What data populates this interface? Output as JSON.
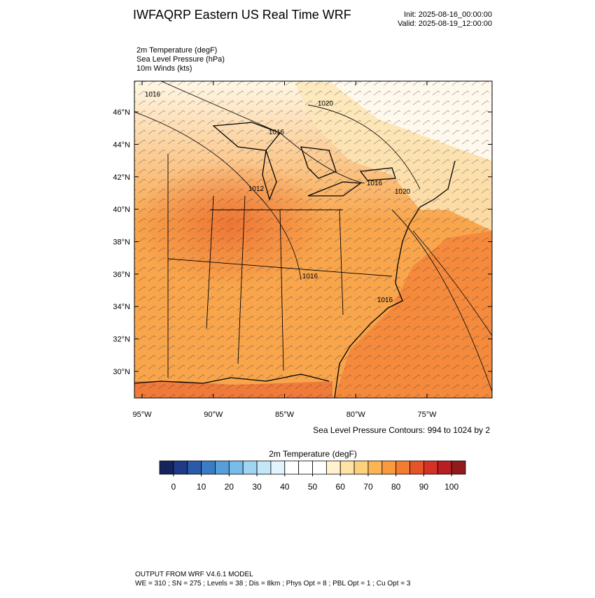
{
  "header": {
    "title": "IWFAQRP Eastern US Real Time WRF",
    "init": "Init: 2025-08-16_00:00:00",
    "valid": "Valid: 2025-08-19_12:00:00",
    "fields": [
      "2m Temperature   (degF)",
      "Sea Level Pressure   (hPa)",
      "10m Winds   (kts)"
    ]
  },
  "map": {
    "lonlim": [
      -95.54,
      -70.43
    ],
    "latlim": [
      28.36,
      47.9
    ],
    "lat_ticks": [
      {
        "value": 30,
        "label": "30°N"
      },
      {
        "value": 32,
        "label": "32°N"
      },
      {
        "value": 34,
        "label": "34°N"
      },
      {
        "value": 36,
        "label": "36°N"
      },
      {
        "value": 38,
        "label": "38°N"
      },
      {
        "value": 40,
        "label": "40°N"
      },
      {
        "value": 42,
        "label": "42°N"
      },
      {
        "value": 44,
        "label": "44°N"
      },
      {
        "value": 46,
        "label": "46°N"
      }
    ],
    "lon_ticks": [
      {
        "value": -95,
        "label": "95°W"
      },
      {
        "value": -90,
        "label": "90°W"
      },
      {
        "value": -85,
        "label": "85°W"
      },
      {
        "value": -80,
        "label": "80°W"
      },
      {
        "value": -75,
        "label": "75°W"
      }
    ],
    "contour_labels": [
      "1016",
      "1020",
      "1016",
      "1012",
      "1016",
      "1020",
      "1016",
      "1016"
    ],
    "contour_note": "Sea Level Pressure Contours: 994 to 1024 by 2"
  },
  "colorbar": {
    "title": "2m Temperature  (degF)",
    "ticks": [
      0,
      10,
      20,
      30,
      40,
      50,
      60,
      70,
      80,
      90,
      100
    ],
    "colors": [
      "#16245c",
      "#1f3a86",
      "#2b5aa8",
      "#3b7dc4",
      "#569fd9",
      "#78bde9",
      "#9fd5f3",
      "#c4e7f8",
      "#e2f3fb",
      "#ffffff",
      "#ffffff",
      "#ffffff",
      "#fff2cc",
      "#fee3a4",
      "#fdd07c",
      "#fcb552",
      "#f99a3e",
      "#f37b32",
      "#e55429",
      "#d43224",
      "#b81e22",
      "#921a1c"
    ]
  },
  "footer": {
    "line1": "OUTPUT FROM WRF V4.6.1 MODEL",
    "line2": "WE = 310 ; SN = 275 ; Levels = 38 ; Dis = 8km ; Phys Opt = 8 ; PBL Opt = 1 ; Cu Opt = 3"
  }
}
